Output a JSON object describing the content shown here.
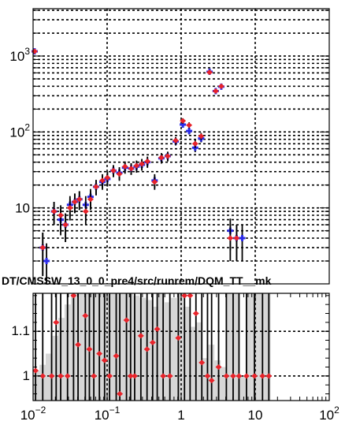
{
  "chart_data": [
    {
      "type": "scatter",
      "title": "",
      "xlabel": "",
      "ylabel": "",
      "xscale": "log",
      "yscale": "log",
      "xlim": [
        0.01,
        100
      ],
      "ylim": [
        1,
        4200
      ],
      "grid": true,
      "yticks": [
        {
          "value": 10,
          "label": "10"
        },
        {
          "value": 100,
          "label": "10^2"
        },
        {
          "value": 1000,
          "label": "10^3"
        }
      ],
      "series": [
        {
          "color": "#2a2ae8",
          "marker": "cross",
          "points": [
            [
              0.0105,
              1150
            ],
            [
              0.0135,
              3.0
            ],
            [
              0.0152,
              2.0
            ],
            [
              0.0192,
              9.0
            ],
            [
              0.0236,
              7.0
            ],
            [
              0.0274,
              6.0
            ],
            [
              0.0315,
              11.0
            ],
            [
              0.0366,
              12.0
            ],
            [
              0.0422,
              13.0
            ],
            [
              0.0514,
              11.0
            ],
            [
              0.0597,
              14.0
            ],
            [
              0.0709,
              19.0
            ],
            [
              0.0864,
              22.0
            ],
            [
              0.1008,
              24.0
            ],
            [
              0.1215,
              31.0
            ],
            [
              0.1463,
              29.0
            ],
            [
              0.1745,
              34.0
            ],
            [
              0.2112,
              33.0
            ],
            [
              0.2496,
              35.0
            ],
            [
              0.2945,
              37.0
            ],
            [
              0.3505,
              40.0
            ],
            [
              0.4382,
              23.0
            ],
            [
              0.5406,
              45.0
            ],
            [
              0.6578,
              48.0
            ],
            [
              0.8436,
              75.0
            ],
            [
              1.0543,
              125.0
            ],
            [
              1.2811,
              103.0
            ],
            [
              1.5466,
              62.0
            ],
            [
              1.8622,
              82.0
            ],
            [
              2.4174,
              620.0
            ],
            [
              2.9272,
              345.0
            ],
            [
              3.4828,
              395.0
            ],
            [
              4.6066,
              5.0
            ],
            [
              5.6062,
              4.0
            ],
            [
              6.6781,
              4.0
            ]
          ]
        },
        {
          "color": "#e8232a",
          "marker": "diamond",
          "points": [
            [
              0.0105,
              1150
            ],
            [
              0.0135,
              3.0
            ],
            [
              0.0192,
              9.0
            ],
            [
              0.0236,
              8.0
            ],
            [
              0.0274,
              6.0
            ],
            [
              0.0315,
              10.0
            ],
            [
              0.0366,
              12.0
            ],
            [
              0.0422,
              13.0
            ],
            [
              0.0514,
              9.0
            ],
            [
              0.0597,
              13.0
            ],
            [
              0.0709,
              19.0
            ],
            [
              0.0864,
              23.0
            ],
            [
              0.1008,
              25.0
            ],
            [
              0.1215,
              31.0
            ],
            [
              0.1463,
              28.0
            ],
            [
              0.1745,
              35.0
            ],
            [
              0.2112,
              33.0
            ],
            [
              0.2496,
              36.0
            ],
            [
              0.2945,
              38.0
            ],
            [
              0.3505,
              41.0
            ],
            [
              0.4382,
              22.0
            ],
            [
              0.5406,
              46.0
            ],
            [
              0.6578,
              48.0
            ],
            [
              0.8436,
              77.0
            ],
            [
              1.0543,
              140.0
            ],
            [
              1.2811,
              123.0
            ],
            [
              1.5466,
              70.0
            ],
            [
              1.8622,
              88.0
            ],
            [
              2.4174,
              610.0
            ],
            [
              2.9272,
              345.0
            ],
            [
              3.4828,
              400.0
            ],
            [
              4.6066,
              4.0
            ],
            [
              5.6062,
              4.0
            ]
          ]
        }
      ]
    },
    {
      "type": "scatter",
      "title": "",
      "xlabel": "",
      "ylabel": "",
      "xscale": "log",
      "xlim": [
        0.01,
        100
      ],
      "ylim": [
        0.945,
        1.185
      ],
      "grid": true,
      "xticks": [
        {
          "value": 0.01,
          "label": "10^-2"
        },
        {
          "value": 0.1,
          "label": "10^-1"
        },
        {
          "value": 1,
          "label": "1"
        },
        {
          "value": 10,
          "label": "10"
        },
        {
          "value": 100,
          "label": "10^2"
        }
      ],
      "yticks": [
        {
          "value": 1,
          "label": "1"
        },
        {
          "value": 1.1,
          "label": "1.1"
        }
      ],
      "band_color": "#d6d6d6",
      "band": [
        {
          "x0": 0.01,
          "x1": 0.0122,
          "y": 1.012
        },
        {
          "x0": 0.0122,
          "x1": 0.0148,
          "y": 1.025
        },
        {
          "x0": 0.0148,
          "x1": 0.018,
          "y": 1.05
        },
        {
          "x0": 0.018,
          "x1": 0.0219,
          "y": 1.09
        },
        {
          "x0": 0.0219,
          "x1": 0.0266,
          "y": 1.13
        },
        {
          "x0": 0.0266,
          "x1": 0.0323,
          "y": 1.16
        },
        {
          "x0": 0.0323,
          "x1": 0.0392,
          "y": 1.185
        },
        {
          "x0": 0.0392,
          "x1": 0.0476,
          "y": 1.185
        },
        {
          "x0": 0.0476,
          "x1": 0.0578,
          "y": 1.185
        },
        {
          "x0": 0.0578,
          "x1": 0.0702,
          "y": 1.185
        },
        {
          "x0": 0.0702,
          "x1": 0.0853,
          "y": 1.185
        },
        {
          "x0": 0.0853,
          "x1": 0.1035,
          "y": 1.185
        },
        {
          "x0": 0.1035,
          "x1": 0.1257,
          "y": 1.185
        },
        {
          "x0": 0.1257,
          "x1": 0.1527,
          "y": 1.185
        },
        {
          "x0": 0.1527,
          "x1": 0.1854,
          "y": 1.185
        },
        {
          "x0": 0.1854,
          "x1": 0.2252,
          "y": 1.185
        },
        {
          "x0": 0.2252,
          "x1": 0.2735,
          "y": 1.18
        },
        {
          "x0": 0.2735,
          "x1": 0.3321,
          "y": 1.175
        },
        {
          "x0": 0.3321,
          "x1": 0.4033,
          "y": 1.17
        },
        {
          "x0": 0.4033,
          "x1": 0.4898,
          "y": 1.155
        },
        {
          "x0": 0.4898,
          "x1": 0.5948,
          "y": 1.185
        },
        {
          "x0": 0.5948,
          "x1": 0.7223,
          "y": 1.165
        },
        {
          "x0": 0.7223,
          "x1": 0.8772,
          "y": 1.175
        },
        {
          "x0": 0.8772,
          "x1": 1.0652,
          "y": 1.185
        },
        {
          "x0": 1.0652,
          "x1": 1.2936,
          "y": 1.155
        },
        {
          "x0": 1.2936,
          "x1": 1.5709,
          "y": 1.11
        },
        {
          "x0": 1.5709,
          "x1": 1.9077,
          "y": 1.12
        },
        {
          "x0": 1.9077,
          "x1": 2.3167,
          "y": 1.04
        },
        {
          "x0": 2.3167,
          "x1": 2.8134,
          "y": 1.07
        },
        {
          "x0": 2.8134,
          "x1": 3.4165,
          "y": 1.035
        },
        {
          "x0": 3.4165,
          "x1": 4.149,
          "y": 1.02
        },
        {
          "x0": 4.149,
          "x1": 5.0385,
          "y": 1.185
        },
        {
          "x0": 5.0385,
          "x1": 6.1186,
          "y": 1.185
        },
        {
          "x0": 6.1186,
          "x1": 7.4303,
          "y": 1.0
        },
        {
          "x0": 7.4303,
          "x1": 9.0232,
          "y": 1.185
        },
        {
          "x0": 9.0232,
          "x1": 10.9577,
          "y": 1.185
        },
        {
          "x0": 10.9577,
          "x1": 13.307,
          "y": 1.185
        },
        {
          "x0": 13.307,
          "x1": 16.16,
          "y": 1.185
        }
      ],
      "series": [
        {
          "color": "#e8232a",
          "marker": "diamond",
          "points": [
            [
              0.0108,
              1.012
            ],
            [
              0.0135,
              1.0
            ],
            [
              0.0178,
              1.0
            ],
            [
              0.0205,
              1.12
            ],
            [
              0.0236,
              1.0
            ],
            [
              0.0292,
              1.0
            ],
            [
              0.0352,
              1.18
            ],
            [
              0.0405,
              1.07
            ],
            [
              0.0508,
              1.135
            ],
            [
              0.0576,
              1.06
            ],
            [
              0.0661,
              1.0
            ],
            [
              0.0786,
              1.05
            ],
            [
              0.0924,
              1.035
            ],
            [
              0.1079,
              1.0
            ],
            [
              0.1326,
              1.045
            ],
            [
              0.1484,
              0.96
            ],
            [
              0.1826,
              1.125
            ],
            [
              0.2074,
              1.0
            ],
            [
              0.2355,
              1.0
            ],
            [
              0.2856,
              1.09
            ],
            [
              0.3459,
              1.06
            ],
            [
              0.4119,
              1.075
            ],
            [
              0.4749,
              1.105
            ],
            [
              0.5713,
              1.0
            ],
            [
              0.7043,
              1.0
            ],
            [
              0.9153,
              1.085
            ],
            [
              1.1095,
              1.18
            ],
            [
              1.3196,
              1.18
            ],
            [
              1.5836,
              1.14
            ],
            [
              1.901,
              1.03
            ],
            [
              2.2694,
              1.0
            ],
            [
              2.5787,
              0.99
            ],
            [
              3.2041,
              1.02
            ],
            [
              4.0785,
              1.0
            ],
            [
              5.0326,
              1.0
            ],
            [
              6.0436,
              1.0
            ],
            [
              7.6211,
              1.0
            ],
            [
              9.7811,
              1.0
            ],
            [
              12.5528,
              1.0
            ],
            [
              15.2818,
              1.0
            ]
          ]
        }
      ]
    }
  ],
  "overlay_text": "DT/CMSSW_13_0_0_pre4/src/runrem/DQM_TT__mk"
}
